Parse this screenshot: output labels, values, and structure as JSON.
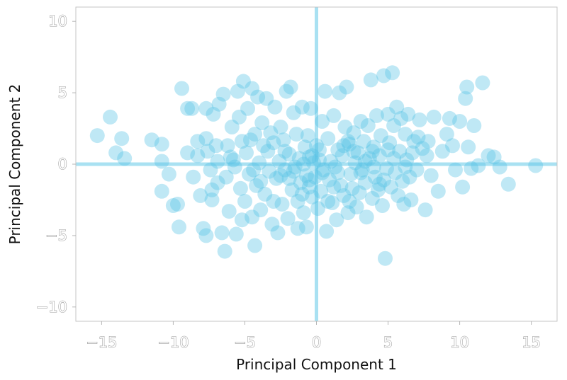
{
  "chart_data": {
    "type": "scatter",
    "title": "",
    "xlabel": "Principal Component 1",
    "ylabel": "Principal Component 2",
    "xlim": [
      -16.8,
      16.8
    ],
    "ylim": [
      -11,
      11
    ],
    "x_ticks": [
      -15,
      -10,
      -5,
      0,
      5,
      10,
      15
    ],
    "y_ticks": [
      -10,
      -5,
      0,
      5,
      10
    ],
    "x_tick_labels": [
      "−15",
      "−10",
      "−5",
      "0",
      "5",
      "10",
      "15"
    ],
    "y_tick_labels": [
      "−10",
      "−5",
      "0",
      "5",
      "10"
    ],
    "reference_lines": {
      "x": 0,
      "y": 0
    },
    "grid": false,
    "colors": {
      "points": "#56c3e6",
      "reference_lines": "#a9e1f2",
      "tick_labels": "#9a9a9a",
      "axis_titles": "#111111"
    },
    "points": [
      [
        -15.3,
        2.0
      ],
      [
        -14.4,
        3.3
      ],
      [
        -13.6,
        1.8
      ],
      [
        -13.4,
        0.4
      ],
      [
        -14.0,
        0.8
      ],
      [
        -11.5,
        1.7
      ],
      [
        -10.8,
        1.4
      ],
      [
        -10.8,
        0.2
      ],
      [
        -10.8,
        -1.9
      ],
      [
        -10.3,
        -0.7
      ],
      [
        -10.0,
        -2.9
      ],
      [
        -9.7,
        -2.8
      ],
      [
        -9.6,
        -4.4
      ],
      [
        -9.4,
        5.3
      ],
      [
        -9.0,
        3.9
      ],
      [
        -8.7,
        3.9
      ],
      [
        -8.3,
        1.6
      ],
      [
        -8.3,
        0.6
      ],
      [
        -8.1,
        -2.2
      ],
      [
        -7.9,
        -4.5
      ],
      [
        -7.7,
        3.9
      ],
      [
        -7.7,
        -5.0
      ],
      [
        -7.7,
        1.8
      ],
      [
        -7.6,
        0.9
      ],
      [
        -7.4,
        -0.4
      ],
      [
        -7.3,
        -2.5
      ],
      [
        -7.2,
        3.5
      ],
      [
        -6.9,
        -1.3
      ],
      [
        -6.8,
        4.2
      ],
      [
        -6.6,
        -4.8
      ],
      [
        -6.5,
        4.9
      ],
      [
        -6.4,
        -6.1
      ],
      [
        -6.3,
        -0.9
      ],
      [
        -6.2,
        1.3
      ],
      [
        -6.1,
        -3.3
      ],
      [
        -5.9,
        2.6
      ],
      [
        -5.8,
        0.3
      ],
      [
        -5.6,
        -4.9
      ],
      [
        -5.5,
        5.1
      ],
      [
        -5.4,
        3.3
      ],
      [
        -5.3,
        -1.7
      ],
      [
        -5.2,
        1.6
      ],
      [
        -5.1,
        5.8
      ],
      [
        -5.0,
        -2.6
      ],
      [
        -4.9,
        0.8
      ],
      [
        -4.8,
        3.9
      ],
      [
        -4.7,
        -0.7
      ],
      [
        -4.5,
        -3.7
      ],
      [
        -4.5,
        5.3
      ],
      [
        -4.3,
        2.1
      ],
      [
        -4.3,
        -5.7
      ],
      [
        -4.2,
        -1.5
      ],
      [
        -4.1,
        4.7
      ],
      [
        -4.0,
        0.1
      ],
      [
        -3.9,
        -3.2
      ],
      [
        -3.8,
        2.9
      ],
      [
        -3.7,
        1.3
      ],
      [
        -3.6,
        -2.1
      ],
      [
        -3.5,
        4.6
      ],
      [
        -3.4,
        0.9
      ],
      [
        -3.3,
        -0.5
      ],
      [
        -3.2,
        2.2
      ],
      [
        -3.1,
        -4.2
      ],
      [
        -3.0,
        1.5
      ],
      [
        -2.9,
        4.0
      ],
      [
        -2.8,
        -1.0
      ],
      [
        -2.7,
        -4.8
      ],
      [
        -2.6,
        0.2
      ],
      [
        -2.5,
        2.6
      ],
      [
        -2.4,
        -2.8
      ],
      [
        -2.3,
        1.7
      ],
      [
        -2.2,
        -0.4
      ],
      [
        -2.1,
        5.1
      ],
      [
        -2.0,
        -3.8
      ],
      [
        -1.9,
        0.7
      ],
      [
        -1.8,
        5.4
      ],
      [
        -1.7,
        -1.8
      ],
      [
        -1.6,
        3.6
      ],
      [
        -1.5,
        -0.2
      ],
      [
        -1.4,
        2.1
      ],
      [
        -1.3,
        -4.5
      ],
      [
        -1.3,
        -2.6
      ],
      [
        -1.2,
        0.4
      ],
      [
        -1.1,
        -1.3
      ],
      [
        -1.0,
        4.0
      ],
      [
        -0.9,
        0.0
      ],
      [
        -0.9,
        -3.4
      ],
      [
        -0.8,
        1.2
      ],
      [
        -0.7,
        -0.8
      ],
      [
        -0.7,
        -4.4
      ],
      [
        -0.6,
        2.0
      ],
      [
        -0.5,
        -1.6
      ],
      [
        -0.5,
        0.5
      ],
      [
        -0.4,
        3.9
      ],
      [
        -0.3,
        -2.3
      ],
      [
        -0.2,
        0.1
      ],
      [
        -0.1,
        -0.9
      ],
      [
        0.0,
        1.3
      ],
      [
        0.1,
        -3.1
      ],
      [
        0.2,
        0.3
      ],
      [
        0.3,
        -1.9
      ],
      [
        0.4,
        3.0
      ],
      [
        0.5,
        -0.4
      ],
      [
        0.6,
        5.1
      ],
      [
        0.7,
        -4.7
      ],
      [
        0.8,
        1.8
      ],
      [
        0.9,
        -1.1
      ],
      [
        1.0,
        0.2
      ],
      [
        1.1,
        -2.7
      ],
      [
        1.2,
        3.4
      ],
      [
        1.3,
        -0.2
      ],
      [
        1.4,
        -3.9
      ],
      [
        1.5,
        1.0
      ],
      [
        1.6,
        5.0
      ],
      [
        1.7,
        -1.5
      ],
      [
        1.8,
        0.6
      ],
      [
        1.9,
        -2.2
      ],
      [
        2.0,
        2.6
      ],
      [
        2.1,
        5.4
      ],
      [
        2.2,
        -3.4
      ],
      [
        2.3,
        1.4
      ],
      [
        2.4,
        -0.7
      ],
      [
        2.5,
        -1.7
      ],
      [
        2.6,
        2.2
      ],
      [
        2.7,
        0.1
      ],
      [
        2.8,
        -3.0
      ],
      [
        2.9,
        0.8
      ],
      [
        3.0,
        -2.0
      ],
      [
        3.1,
        3.0
      ],
      [
        3.2,
        -0.4
      ],
      [
        3.3,
        1.6
      ],
      [
        3.4,
        -1.3
      ],
      [
        3.5,
        -3.7
      ],
      [
        3.6,
        2.7
      ],
      [
        3.7,
        0.4
      ],
      [
        3.8,
        5.9
      ],
      [
        3.9,
        -2.4
      ],
      [
        4.0,
        1.2
      ],
      [
        4.1,
        -0.9
      ],
      [
        4.2,
        3.4
      ],
      [
        4.3,
        -1.8
      ],
      [
        4.4,
        0.6
      ],
      [
        4.5,
        2.0
      ],
      [
        4.6,
        -2.9
      ],
      [
        4.7,
        6.2
      ],
      [
        4.8,
        -6.6
      ],
      [
        4.9,
        -0.3
      ],
      [
        5.0,
        3.5
      ],
      [
        5.1,
        1.5
      ],
      [
        5.2,
        -1.6
      ],
      [
        5.3,
        6.4
      ],
      [
        5.4,
        2.7
      ],
      [
        5.5,
        -0.6
      ],
      [
        5.6,
        4.0
      ],
      [
        5.7,
        -2.2
      ],
      [
        5.8,
        0.9
      ],
      [
        5.9,
        3.2
      ],
      [
        6.0,
        -1.2
      ],
      [
        6.1,
        -2.8
      ],
      [
        6.2,
        2.1
      ],
      [
        6.3,
        0.3
      ],
      [
        6.4,
        3.5
      ],
      [
        6.5,
        -0.9
      ],
      [
        6.6,
        -2.5
      ],
      [
        6.8,
        1.6
      ],
      [
        7.0,
        -0.4
      ],
      [
        7.2,
        3.1
      ],
      [
        7.4,
        1.1
      ],
      [
        7.6,
        -3.2
      ],
      [
        7.8,
        1.6
      ],
      [
        8.0,
        -0.8
      ],
      [
        8.2,
        3.3
      ],
      [
        8.5,
        -1.9
      ],
      [
        8.8,
        0.9
      ],
      [
        9.1,
        2.1
      ],
      [
        9.3,
        3.2
      ],
      [
        9.5,
        1.3
      ],
      [
        9.7,
        -0.4
      ],
      [
        10.0,
        3.0
      ],
      [
        10.2,
        -1.6
      ],
      [
        10.4,
        4.6
      ],
      [
        10.5,
        5.4
      ],
      [
        10.6,
        1.2
      ],
      [
        10.8,
        -0.3
      ],
      [
        11.0,
        2.7
      ],
      [
        11.3,
        -0.1
      ],
      [
        11.6,
        5.7
      ],
      [
        12.0,
        0.6
      ],
      [
        12.4,
        0.5
      ],
      [
        12.8,
        -0.2
      ],
      [
        13.4,
        -1.4
      ],
      [
        15.3,
        -0.1
      ],
      [
        -7.0,
        1.3
      ],
      [
        -6.0,
        0.5
      ],
      [
        -4.6,
        1.7
      ],
      [
        -3.9,
        -1.2
      ],
      [
        -2.2,
        0.9
      ],
      [
        -1.6,
        -0.5
      ],
      [
        -0.3,
        0.6
      ],
      [
        0.4,
        -0.6
      ],
      [
        1.2,
        -1.6
      ],
      [
        1.9,
        1.3
      ],
      [
        2.6,
        0.9
      ],
      [
        3.4,
        0.2
      ],
      [
        4.0,
        -0.2
      ],
      [
        4.7,
        -1.1
      ],
      [
        5.4,
        0.4
      ],
      [
        6.2,
        -0.2
      ],
      [
        7.1,
        1.9
      ],
      [
        7.7,
        0.6
      ],
      [
        -8.6,
        -0.9
      ],
      [
        -9.0,
        0.8
      ],
      [
        -5.7,
        -0.2
      ],
      [
        -3.0,
        -2.6
      ],
      [
        -1.0,
        -2.1
      ],
      [
        0.8,
        -2.6
      ],
      [
        2.3,
        -2.6
      ],
      [
        3.9,
        0.9
      ],
      [
        5.0,
        1.0
      ],
      [
        6.7,
        0.8
      ],
      [
        -7.3,
        -1.8
      ],
      [
        -5.2,
        -3.9
      ],
      [
        -2.5,
        -0.8
      ],
      [
        -0.5,
        -1.1
      ],
      [
        1.5,
        -0.6
      ],
      [
        3.1,
        -0.6
      ],
      [
        4.4,
        -1.4
      ],
      [
        -6.9,
        0.2
      ],
      [
        -4.4,
        -0.4
      ],
      [
        -1.9,
        -1.0
      ],
      [
        0.2,
        1.0
      ],
      [
        2.2,
        1.6
      ]
    ]
  }
}
